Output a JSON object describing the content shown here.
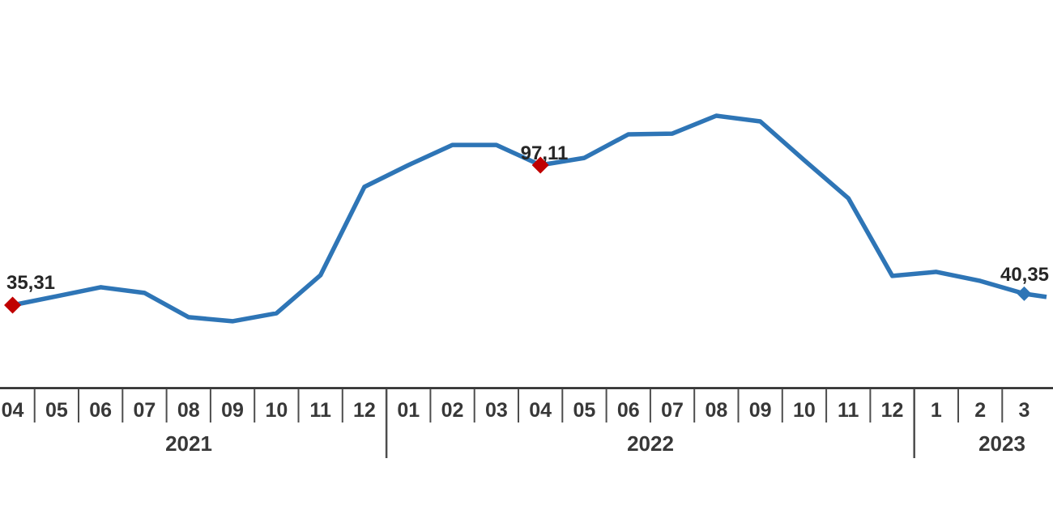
{
  "chart_data": {
    "type": "line",
    "title": "",
    "x_months": [
      "04",
      "05",
      "06",
      "07",
      "08",
      "09",
      "10",
      "11",
      "12",
      "01",
      "02",
      "03",
      "04",
      "05",
      "06",
      "07",
      "08",
      "09",
      "10",
      "11",
      "12",
      "1",
      "2",
      "3"
    ],
    "years": [
      {
        "label": "2021",
        "month_count": 9
      },
      {
        "label": "2022",
        "month_count": 12
      },
      {
        "label": "2023",
        "month_count": 3
      }
    ],
    "values": [
      35.31,
      39.2,
      43.2,
      40.7,
      30.0,
      28.2,
      31.7,
      48.5,
      87.5,
      97.1,
      106.0,
      106.0,
      97.11,
      100.3,
      110.7,
      111.0,
      118.9,
      116.4,
      99.3,
      82.5,
      48.2,
      50.0,
      46.0,
      40.35
    ],
    "labeled_points": [
      {
        "index": 0,
        "label": "35,31",
        "marker_color": "#C00000"
      },
      {
        "index": 12,
        "label": "97,11",
        "marker_color": "#C00000"
      },
      {
        "index": 23,
        "label": "40,35",
        "marker_color": "#2E75B6"
      }
    ],
    "line_color": "#2E75B6",
    "marker_red": "#C00000",
    "label_text_color": "#262626",
    "axis_color": "#1f1f1f",
    "divider_color": "#4d4d4d",
    "tick_text_color": "#383838",
    "grid": false,
    "legend": false,
    "y_axis_visible": false
  }
}
